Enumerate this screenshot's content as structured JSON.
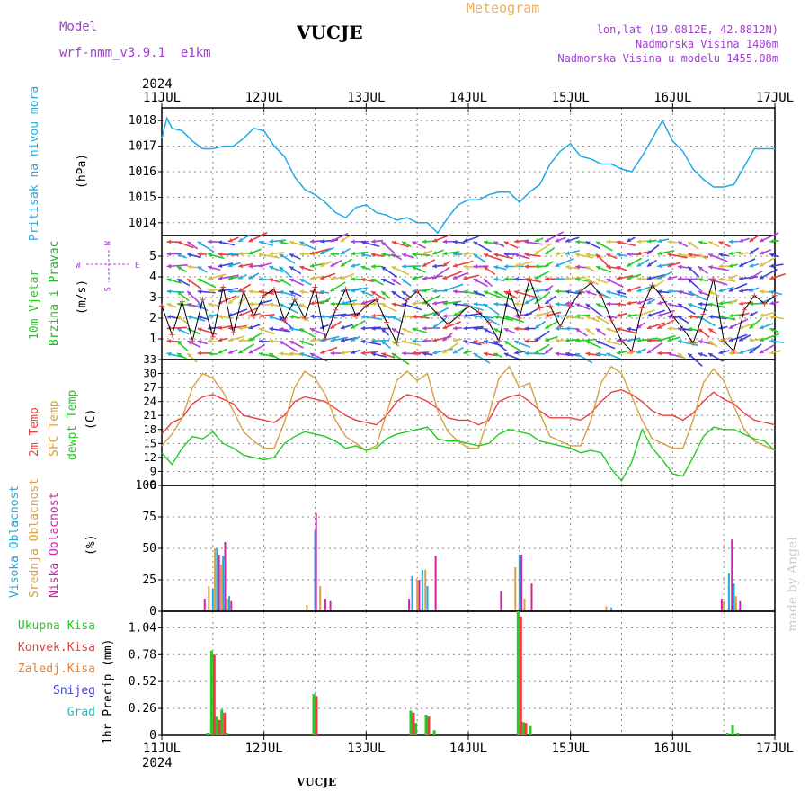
{
  "header": {
    "model_label": "Model",
    "model_name": "wrf-nmm_v3.9.1  e1km",
    "station": "VUCJE",
    "meteogram": "Meteogram",
    "lonlat": "lon,lat (19.0812E, 42.8812N)",
    "elevation": "Nadmorska Visina 1406m",
    "elevation_model": "Nadmorska Visina u modelu 1455.08m",
    "year_top": "2024",
    "year_bottom": "2024",
    "footer_station": "VUCJE",
    "watermark": "made by Angel"
  },
  "colors": {
    "pressure": "#1eaaea",
    "wind_label": "#22cc22",
    "wind_label2": "#22bb22",
    "compass": "#b040d8",
    "t2m": "#e84040",
    "sfc": "#d8a040",
    "dew": "#22cc22",
    "high_cloud": "#22aadd",
    "mid_cloud": "#d8a040",
    "low_cloud": "#cc22aa",
    "total_precip": "#22cc22",
    "conv_precip": "#e84040",
    "frozen": "#e88030",
    "snow": "#4040e0",
    "hail": "#22bbbb",
    "header_purple": "#a040d0",
    "header_orange": "#e8b060"
  },
  "time_axis": {
    "ticks": [
      "11JUL",
      "12JUL",
      "13JUL",
      "14JUL",
      "15JUL",
      "16JUL",
      "17JUL"
    ],
    "start_day": 11,
    "end_day": 17
  },
  "panels": {
    "pressure": {
      "label": "Pritisak na nivou mora",
      "unit": "(hPa)"
    },
    "wind": {
      "label1": "10m Vjetar",
      "label2": "Brzina i Pravac",
      "unit": "(m/s)",
      "compass": {
        "n": "N",
        "s": "S",
        "w": "W",
        "e": "E"
      }
    },
    "temp": {
      "label1": "2m Temp",
      "label2": "SFC Temp",
      "label3": "dewpt Temp",
      "unit": "(C)"
    },
    "cloud": {
      "label1": "Visoka Oblacnost",
      "label2": "Srednja Oblacnost",
      "label3": "Niska Oblacnost",
      "unit": "(%)"
    },
    "precip": {
      "legend": [
        "Ukupna Kisa",
        "Konvek.Kisa",
        "Zaledj.Kisa",
        "Snijeg",
        "Grad"
      ],
      "unit": "1hr Precip (mm)"
    }
  },
  "chart_data": [
    {
      "type": "line",
      "name": "pressure",
      "x_unit": "day of July 2024",
      "ylabel": "(hPa)",
      "ylim": [
        1013.5,
        1018.5
      ],
      "yticks": [
        1014,
        1015,
        1016,
        1017,
        1018
      ],
      "x": [
        11.0,
        11.05,
        11.1,
        11.2,
        11.3,
        11.4,
        11.5,
        11.6,
        11.7,
        11.8,
        11.9,
        12.0,
        12.1,
        12.2,
        12.3,
        12.4,
        12.5,
        12.6,
        12.7,
        12.8,
        12.9,
        13.0,
        13.1,
        13.2,
        13.3,
        13.4,
        13.5,
        13.6,
        13.7,
        13.8,
        13.9,
        14.0,
        14.1,
        14.2,
        14.3,
        14.4,
        14.5,
        14.6,
        14.7,
        14.8,
        14.9,
        15.0,
        15.1,
        15.2,
        15.3,
        15.4,
        15.5,
        15.6,
        15.7,
        15.8,
        15.9,
        16.0,
        16.1,
        16.2,
        16.3,
        16.4,
        16.5,
        16.6,
        16.7,
        16.8,
        16.9,
        17.0
      ],
      "y": [
        1017.3,
        1018.1,
        1017.7,
        1017.6,
        1017.2,
        1016.9,
        1016.9,
        1017.0,
        1017.0,
        1017.3,
        1017.7,
        1017.6,
        1017.0,
        1016.6,
        1015.8,
        1015.3,
        1015.1,
        1014.8,
        1014.4,
        1014.2,
        1014.6,
        1014.7,
        1014.4,
        1014.3,
        1014.1,
        1014.2,
        1014.0,
        1014.0,
        1013.6,
        1014.2,
        1014.7,
        1014.9,
        1014.9,
        1015.1,
        1015.2,
        1015.2,
        1014.8,
        1015.2,
        1015.5,
        1016.3,
        1016.8,
        1017.1,
        1016.6,
        1016.5,
        1016.3,
        1016.3,
        1016.1,
        1016.0,
        1016.6,
        1017.3,
        1018.0,
        1017.2,
        1016.8,
        1016.1,
        1015.7,
        1015.4,
        1015.4,
        1015.5,
        1016.2,
        1016.9,
        1016.9,
        1016.9
      ]
    },
    {
      "type": "line",
      "name": "wind_speed",
      "ylabel": "(m/s)",
      "ylim": [
        0,
        6
      ],
      "yticks": [
        1,
        2,
        3,
        4,
        5
      ],
      "x": [
        11.0,
        11.1,
        11.2,
        11.3,
        11.4,
        11.5,
        11.6,
        11.7,
        11.8,
        11.9,
        12.0,
        12.1,
        12.2,
        12.3,
        12.4,
        12.5,
        12.6,
        12.7,
        12.8,
        12.9,
        13.0,
        13.1,
        13.2,
        13.3,
        13.4,
        13.5,
        13.6,
        13.7,
        13.8,
        13.9,
        14.0,
        14.1,
        14.2,
        14.3,
        14.4,
        14.5,
        14.6,
        14.7,
        14.8,
        14.9,
        15.0,
        15.1,
        15.2,
        15.3,
        15.4,
        15.5,
        15.6,
        15.7,
        15.8,
        15.9,
        16.0,
        16.1,
        16.2,
        16.3,
        16.4,
        16.5,
        16.6,
        16.7,
        16.8,
        16.9,
        17.0
      ],
      "y": [
        2.6,
        1.2,
        2.8,
        0.9,
        2.9,
        1.1,
        3.5,
        1.3,
        3.3,
        2.1,
        3.1,
        3.4,
        1.9,
        2.9,
        2.0,
        3.5,
        1.0,
        2.4,
        3.4,
        2.1,
        2.6,
        2.9,
        1.8,
        0.8,
        2.9,
        3.3,
        2.7,
        2.2,
        1.7,
        2.1,
        2.6,
        2.3,
        1.8,
        0.9,
        3.3,
        2.0,
        3.9,
        2.5,
        2.6,
        1.6,
        2.6,
        3.3,
        3.7,
        3.1,
        1.9,
        0.9,
        0.4,
        2.5,
        3.6,
        3.0,
        2.1,
        1.5,
        0.8,
        2.2,
        3.9,
        0.9,
        0.4,
        2.4,
        3.1,
        2.7,
        3.1
      ]
    },
    {
      "type": "line",
      "name": "temperature",
      "ylabel": "(C)",
      "ylim": [
        6,
        33
      ],
      "yticks": [
        6,
        9,
        12,
        15,
        18,
        21,
        24,
        27,
        30,
        33
      ],
      "series": [
        {
          "name": "2m Temp",
          "x": [
            11.0,
            11.1,
            11.2,
            11.3,
            11.4,
            11.5,
            11.6,
            11.7,
            11.8,
            11.9,
            12.0,
            12.1,
            12.2,
            12.3,
            12.4,
            12.5,
            12.6,
            12.7,
            12.8,
            12.9,
            13.0,
            13.1,
            13.2,
            13.3,
            13.4,
            13.5,
            13.6,
            13.7,
            13.8,
            13.9,
            14.0,
            14.1,
            14.2,
            14.3,
            14.4,
            14.5,
            14.6,
            14.7,
            14.8,
            14.9,
            15.0,
            15.1,
            15.2,
            15.3,
            15.4,
            15.5,
            15.6,
            15.7,
            15.8,
            15.9,
            16.0,
            16.1,
            16.2,
            16.3,
            16.4,
            16.5,
            16.6,
            16.7,
            16.8,
            16.9,
            17.0
          ],
          "y": [
            17.0,
            19.5,
            20.5,
            23.5,
            25.0,
            25.5,
            24.5,
            23.5,
            21.0,
            20.5,
            20.0,
            19.5,
            21.0,
            24.0,
            25.0,
            24.5,
            24.0,
            22.5,
            21.0,
            20.0,
            19.5,
            19.0,
            21.0,
            24.0,
            25.5,
            25.0,
            24.0,
            22.5,
            20.5,
            20.0,
            20.0,
            19.0,
            20.0,
            24.0,
            25.0,
            25.5,
            24.0,
            22.0,
            20.5,
            20.5,
            20.5,
            20.0,
            21.5,
            24.0,
            26.0,
            26.5,
            25.5,
            24.0,
            22.0,
            21.0,
            21.0,
            20.0,
            21.5,
            24.0,
            26.0,
            24.5,
            23.5,
            21.5,
            20.0,
            19.5,
            19.0
          ]
        },
        {
          "name": "SFC Temp",
          "x": [
            11.0,
            11.1,
            11.2,
            11.3,
            11.4,
            11.5,
            11.6,
            11.7,
            11.8,
            11.9,
            12.0,
            12.1,
            12.2,
            12.3,
            12.4,
            12.5,
            12.6,
            12.7,
            12.8,
            12.9,
            13.0,
            13.1,
            13.2,
            13.3,
            13.4,
            13.5,
            13.6,
            13.7,
            13.8,
            13.9,
            14.0,
            14.1,
            14.2,
            14.3,
            14.4,
            14.5,
            14.6,
            14.7,
            14.8,
            14.9,
            15.0,
            15.1,
            15.2,
            15.3,
            15.4,
            15.5,
            15.6,
            15.7,
            15.8,
            15.9,
            16.0,
            16.1,
            16.2,
            16.3,
            16.4,
            16.5,
            16.6,
            16.7,
            16.8,
            16.9,
            17.0
          ],
          "y": [
            14.5,
            17.0,
            20.5,
            27.0,
            30.0,
            29.0,
            26.0,
            22.0,
            17.5,
            15.5,
            14.0,
            14.0,
            19.5,
            27.0,
            30.5,
            29.0,
            25.5,
            20.0,
            16.5,
            15.0,
            13.5,
            14.5,
            21.5,
            28.5,
            30.5,
            28.5,
            30.0,
            22.0,
            17.5,
            15.5,
            14.0,
            14.0,
            21.0,
            29.0,
            31.5,
            27.0,
            28.0,
            21.5,
            16.5,
            15.5,
            14.5,
            14.5,
            20.0,
            28.0,
            31.5,
            30.0,
            25.0,
            20.0,
            16.0,
            15.0,
            14.0,
            14.0,
            20.0,
            28.0,
            31.0,
            28.5,
            23.0,
            18.0,
            15.5,
            14.5,
            13.5
          ]
        },
        {
          "name": "dewpt Temp",
          "x": [
            11.0,
            11.1,
            11.2,
            11.3,
            11.4,
            11.5,
            11.6,
            11.7,
            11.8,
            11.9,
            12.0,
            12.1,
            12.2,
            12.3,
            12.4,
            12.5,
            12.6,
            12.7,
            12.8,
            12.9,
            13.0,
            13.1,
            13.2,
            13.3,
            13.4,
            13.5,
            13.6,
            13.7,
            13.8,
            13.9,
            14.0,
            14.1,
            14.2,
            14.3,
            14.4,
            14.5,
            14.6,
            14.7,
            14.8,
            14.9,
            15.0,
            15.1,
            15.2,
            15.3,
            15.4,
            15.5,
            15.6,
            15.7,
            15.8,
            15.9,
            16.0,
            16.1,
            16.2,
            16.3,
            16.4,
            16.5,
            16.6,
            16.7,
            16.8,
            16.9,
            17.0
          ],
          "y": [
            13.0,
            10.5,
            14.0,
            16.5,
            16.0,
            17.5,
            15.0,
            14.0,
            12.5,
            12.0,
            11.5,
            12.0,
            15.0,
            16.5,
            17.5,
            17.0,
            16.5,
            15.5,
            14.0,
            14.5,
            13.5,
            14.0,
            16.0,
            17.0,
            17.5,
            18.0,
            18.5,
            16.0,
            15.5,
            15.5,
            15.0,
            14.5,
            15.0,
            17.0,
            18.0,
            17.5,
            17.0,
            15.5,
            15.0,
            14.5,
            14.0,
            13.0,
            13.5,
            13.0,
            9.5,
            7.0,
            11.0,
            18.0,
            14.0,
            11.5,
            8.5,
            8.0,
            12.0,
            16.5,
            18.5,
            18.0,
            18.0,
            17.0,
            16.0,
            15.5,
            13.5
          ]
        }
      ]
    },
    {
      "type": "bar",
      "name": "cloud_cover",
      "ylabel": "(%)",
      "ylim": [
        0,
        100
      ],
      "yticks": [
        0,
        25,
        50,
        75,
        100
      ],
      "series": [
        {
          "name": "Visoka Oblacnost",
          "x": [
            11.5,
            11.54,
            11.6,
            11.66,
            12.5,
            13.45,
            13.55,
            13.6,
            14.5,
            15.4,
            16.55,
            16.6
          ],
          "y": [
            18,
            50,
            44,
            12,
            64,
            28,
            33,
            20,
            45,
            3,
            30,
            22
          ]
        },
        {
          "name": "Srednja Oblacnost",
          "x": [
            11.46,
            11.52,
            11.58,
            11.64,
            12.42,
            12.55,
            13.5,
            13.58,
            14.46,
            14.55,
            15.35,
            16.5,
            16.62
          ],
          "y": [
            20,
            50,
            37,
            10,
            5,
            20,
            25,
            33,
            35,
            10,
            4,
            8,
            12
          ]
        },
        {
          "name": "Niska Oblacnost",
          "x": [
            11.42,
            11.56,
            11.62,
            11.68,
            12.51,
            12.6,
            12.65,
            13.42,
            13.52,
            13.68,
            14.32,
            14.52,
            14.62,
            16.48,
            16.58,
            16.66
          ],
          "y": [
            10,
            45,
            55,
            8,
            78,
            10,
            8,
            10,
            25,
            44,
            16,
            45,
            22,
            10,
            57,
            8
          ]
        }
      ]
    },
    {
      "type": "bar",
      "name": "precipitation",
      "ylabel": "1hr Precip (mm)",
      "ylim": [
        0,
        1.2
      ],
      "yticks": [
        0,
        0.26,
        0.52,
        0.78,
        1.04
      ],
      "series": [
        {
          "name": "Ukupna Kisa",
          "x": [
            11.46,
            11.5,
            11.55,
            11.6,
            11.65,
            12.5,
            13.45,
            13.5,
            13.6,
            13.68,
            14.5,
            14.55,
            14.62,
            16.55,
            16.6,
            16.65
          ],
          "y": [
            0.02,
            0.82,
            0.18,
            0.25,
            0.02,
            0.4,
            0.24,
            0.12,
            0.2,
            0.05,
            1.2,
            0.13,
            0.09,
            0.02,
            0.1,
            0.02
          ]
        },
        {
          "name": "Konvek.Kisa",
          "x": [
            11.5,
            11.55,
            11.6,
            12.5,
            13.45,
            13.6,
            14.5,
            14.55
          ],
          "y": [
            0.78,
            0.15,
            0.22,
            0.38,
            0.22,
            0.18,
            1.15,
            0.12
          ]
        }
      ]
    }
  ]
}
